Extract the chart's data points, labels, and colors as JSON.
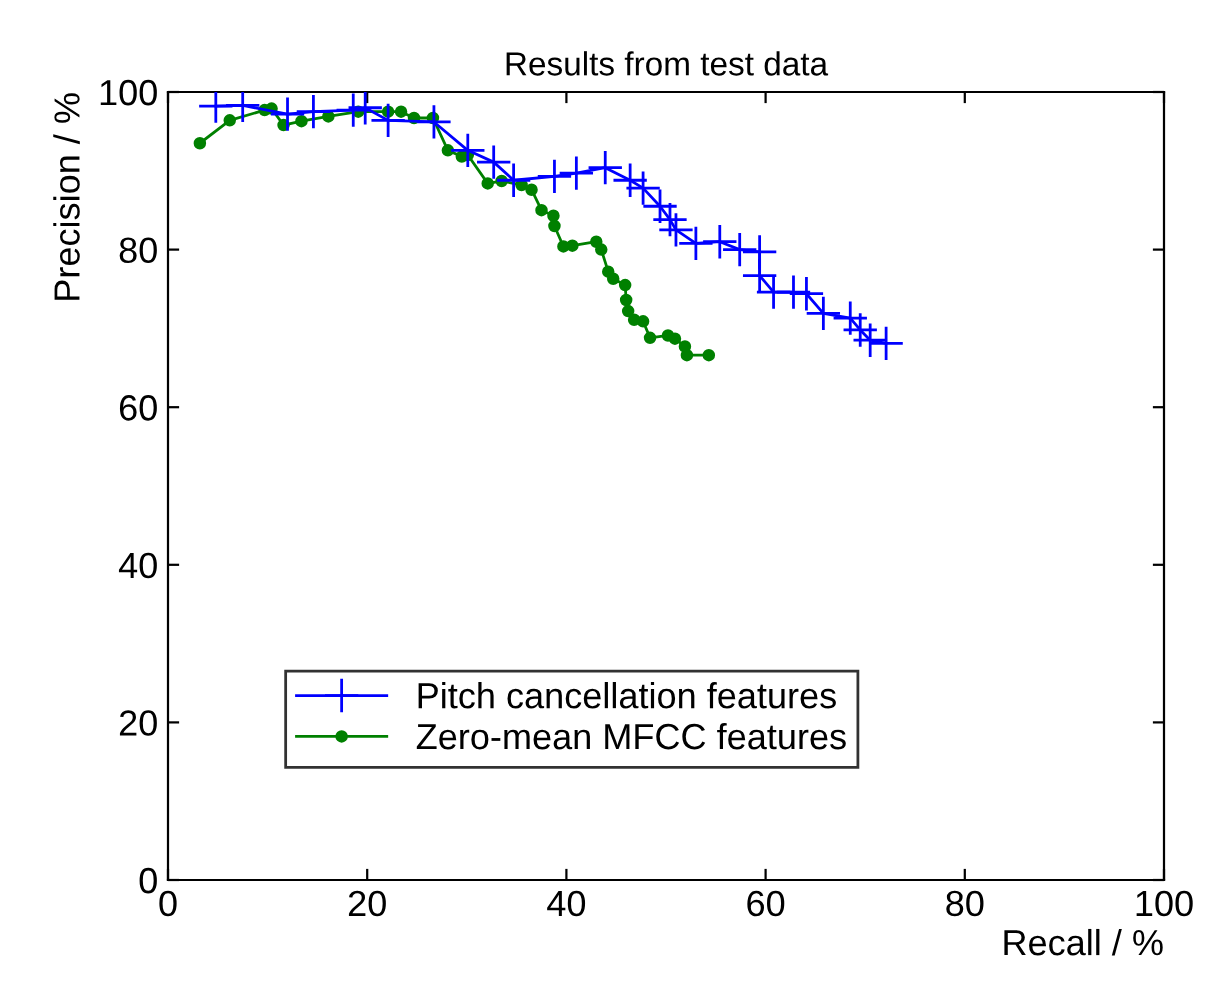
{
  "chart_data": {
    "type": "line",
    "title": "Results from test data",
    "xlabel": "Recall / %",
    "ylabel": "Precision / %",
    "xlim": [
      0,
      100
    ],
    "ylim": [
      0,
      100
    ],
    "xticks": [
      0,
      20,
      40,
      60,
      80,
      100
    ],
    "yticks": [
      0,
      20,
      40,
      60,
      80,
      100
    ],
    "grid": false,
    "legend": "bottom left",
    "series": [
      {
        "name": "Pitch cancellation features",
        "color": "#0000ff",
        "marker": "cross",
        "x": [
          4.8,
          7.5,
          12.0,
          14.6,
          18.6,
          19.8,
          22.1,
          26.7,
          30.1,
          32.7,
          34.7,
          38.8,
          41.0,
          43.9,
          46.4,
          47.7,
          49.4,
          50.4,
          51.0,
          53.0,
          55.4,
          57.4,
          59.4,
          59.4,
          60.8,
          62.8,
          64.1,
          65.8,
          68.5,
          69.5,
          70.5,
          72.1
        ],
        "values": [
          98.2,
          98.3,
          97.2,
          97.5,
          97.7,
          98.0,
          96.4,
          96.2,
          92.6,
          91.1,
          88.8,
          89.3,
          89.7,
          90.4,
          88.8,
          87.8,
          85.5,
          83.8,
          82.5,
          80.8,
          81.0,
          80.0,
          79.7,
          76.7,
          74.6,
          74.6,
          74.4,
          71.9,
          71.3,
          69.8,
          68.5,
          68.1
        ]
      },
      {
        "name": "Zero-mean MFCC features",
        "color": "#008000",
        "marker": "circle",
        "x": [
          3.2,
          6.2,
          9.7,
          10.4,
          11.6,
          13.4,
          16.1,
          19.1,
          22.1,
          23.4,
          24.7,
          26.6,
          28.1,
          29.5,
          30.1,
          32.1,
          33.5,
          35.5,
          36.5,
          37.5,
          38.7,
          38.8,
          39.7,
          40.6,
          43.0,
          43.5,
          44.2,
          44.7,
          45.9,
          46.0,
          46.2,
          46.8,
          47.7,
          48.4,
          50.2,
          50.9,
          51.9,
          52.1,
          54.3
        ],
        "values": [
          93.5,
          96.4,
          97.7,
          97.9,
          95.8,
          96.3,
          96.9,
          97.5,
          97.5,
          97.5,
          96.7,
          96.7,
          92.6,
          91.8,
          92.0,
          88.4,
          88.7,
          88.2,
          87.6,
          85.0,
          84.3,
          83.0,
          80.4,
          80.5,
          81.0,
          80.0,
          77.2,
          76.3,
          75.5,
          73.6,
          72.2,
          71.1,
          70.9,
          68.8,
          69.1,
          68.7,
          67.7,
          66.6,
          66.6
        ]
      }
    ]
  }
}
